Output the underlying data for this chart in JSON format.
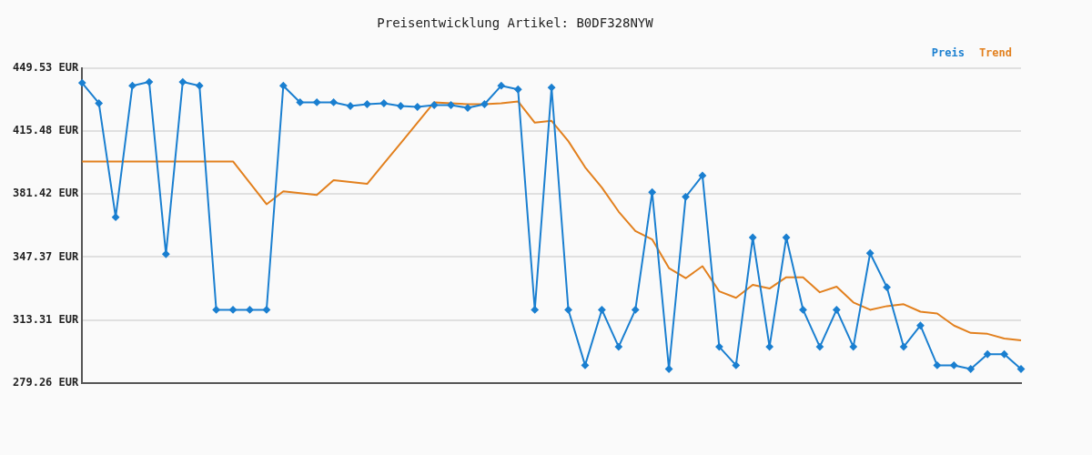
{
  "chart_data": {
    "type": "line",
    "title": "Preisentwicklung Artikel: B0DF328NYW",
    "categories": [
      null,
      null,
      null,
      null,
      null,
      null,
      null,
      null,
      null,
      null,
      null,
      null,
      null,
      null,
      null,
      null,
      null,
      null,
      null,
      null,
      null,
      null,
      null,
      null,
      null,
      null,
      null,
      null,
      null,
      null,
      null,
      null,
      null,
      null,
      null,
      null,
      null,
      null,
      null,
      null,
      null,
      null,
      null,
      null,
      null,
      null,
      null,
      null,
      null,
      null,
      null,
      null,
      null,
      null,
      null,
      null,
      null
    ],
    "series": [
      {
        "name": "Preis",
        "color": "#1a7fd0",
        "marker": "diamond",
        "values": [
          441.5,
          430.5,
          368.9,
          440.0,
          442.0,
          348.9,
          442.0,
          440.0,
          318.8,
          318.8,
          318.8,
          318.8,
          440.0,
          431.0,
          431.0,
          431.0,
          429.0,
          430.0,
          430.5,
          429.0,
          428.5,
          429.5,
          429.5,
          428.0,
          430.0,
          440.0,
          438.0,
          318.8,
          439.0,
          318.8,
          288.8,
          318.8,
          298.8,
          318.8,
          382.4,
          286.8,
          379.9,
          391.4,
          298.8,
          288.8,
          357.9,
          298.8,
          357.9,
          318.8,
          298.8,
          318.8,
          298.8,
          349.4,
          331.0,
          298.8,
          310.3,
          288.8,
          288.8,
          286.8,
          294.8,
          294.8,
          286.8
        ]
      },
      {
        "name": "Trend",
        "color": "#e2801e",
        "marker": "none",
        "values": [
          399.0,
          399.0,
          399.0,
          399.0,
          399.0,
          399.0,
          399.0,
          399.0,
          399.0,
          399.0,
          387.5,
          375.9,
          382.9,
          381.9,
          380.9,
          388.9,
          387.9,
          386.9,
          397.9,
          408.9,
          420.0,
          431.0,
          430.5,
          430.0,
          430.0,
          430.5,
          431.5,
          420.0,
          421.0,
          410.0,
          395.9,
          384.9,
          371.9,
          361.4,
          356.9,
          341.4,
          335.9,
          342.4,
          328.8,
          325.3,
          332.3,
          330.3,
          336.4,
          336.4,
          328.3,
          331.3,
          322.8,
          318.8,
          320.8,
          321.8,
          317.8,
          316.8,
          310.3,
          306.3,
          305.8,
          303.3,
          302.3
        ]
      }
    ],
    "ylim": [
      279.26,
      449.53
    ],
    "yticks": [
      {
        "value": 279.26,
        "label": "279.26 EUR"
      },
      {
        "value": 313.31,
        "label": "313.31 EUR"
      },
      {
        "value": 347.37,
        "label": "347.37 EUR"
      },
      {
        "value": 381.42,
        "label": "381.42 EUR"
      },
      {
        "value": 415.48,
        "label": "415.48 EUR"
      },
      {
        "value": 449.53,
        "label": "449.53 EUR"
      }
    ],
    "grid": "y",
    "legend": "top right",
    "line_style": "solid"
  }
}
